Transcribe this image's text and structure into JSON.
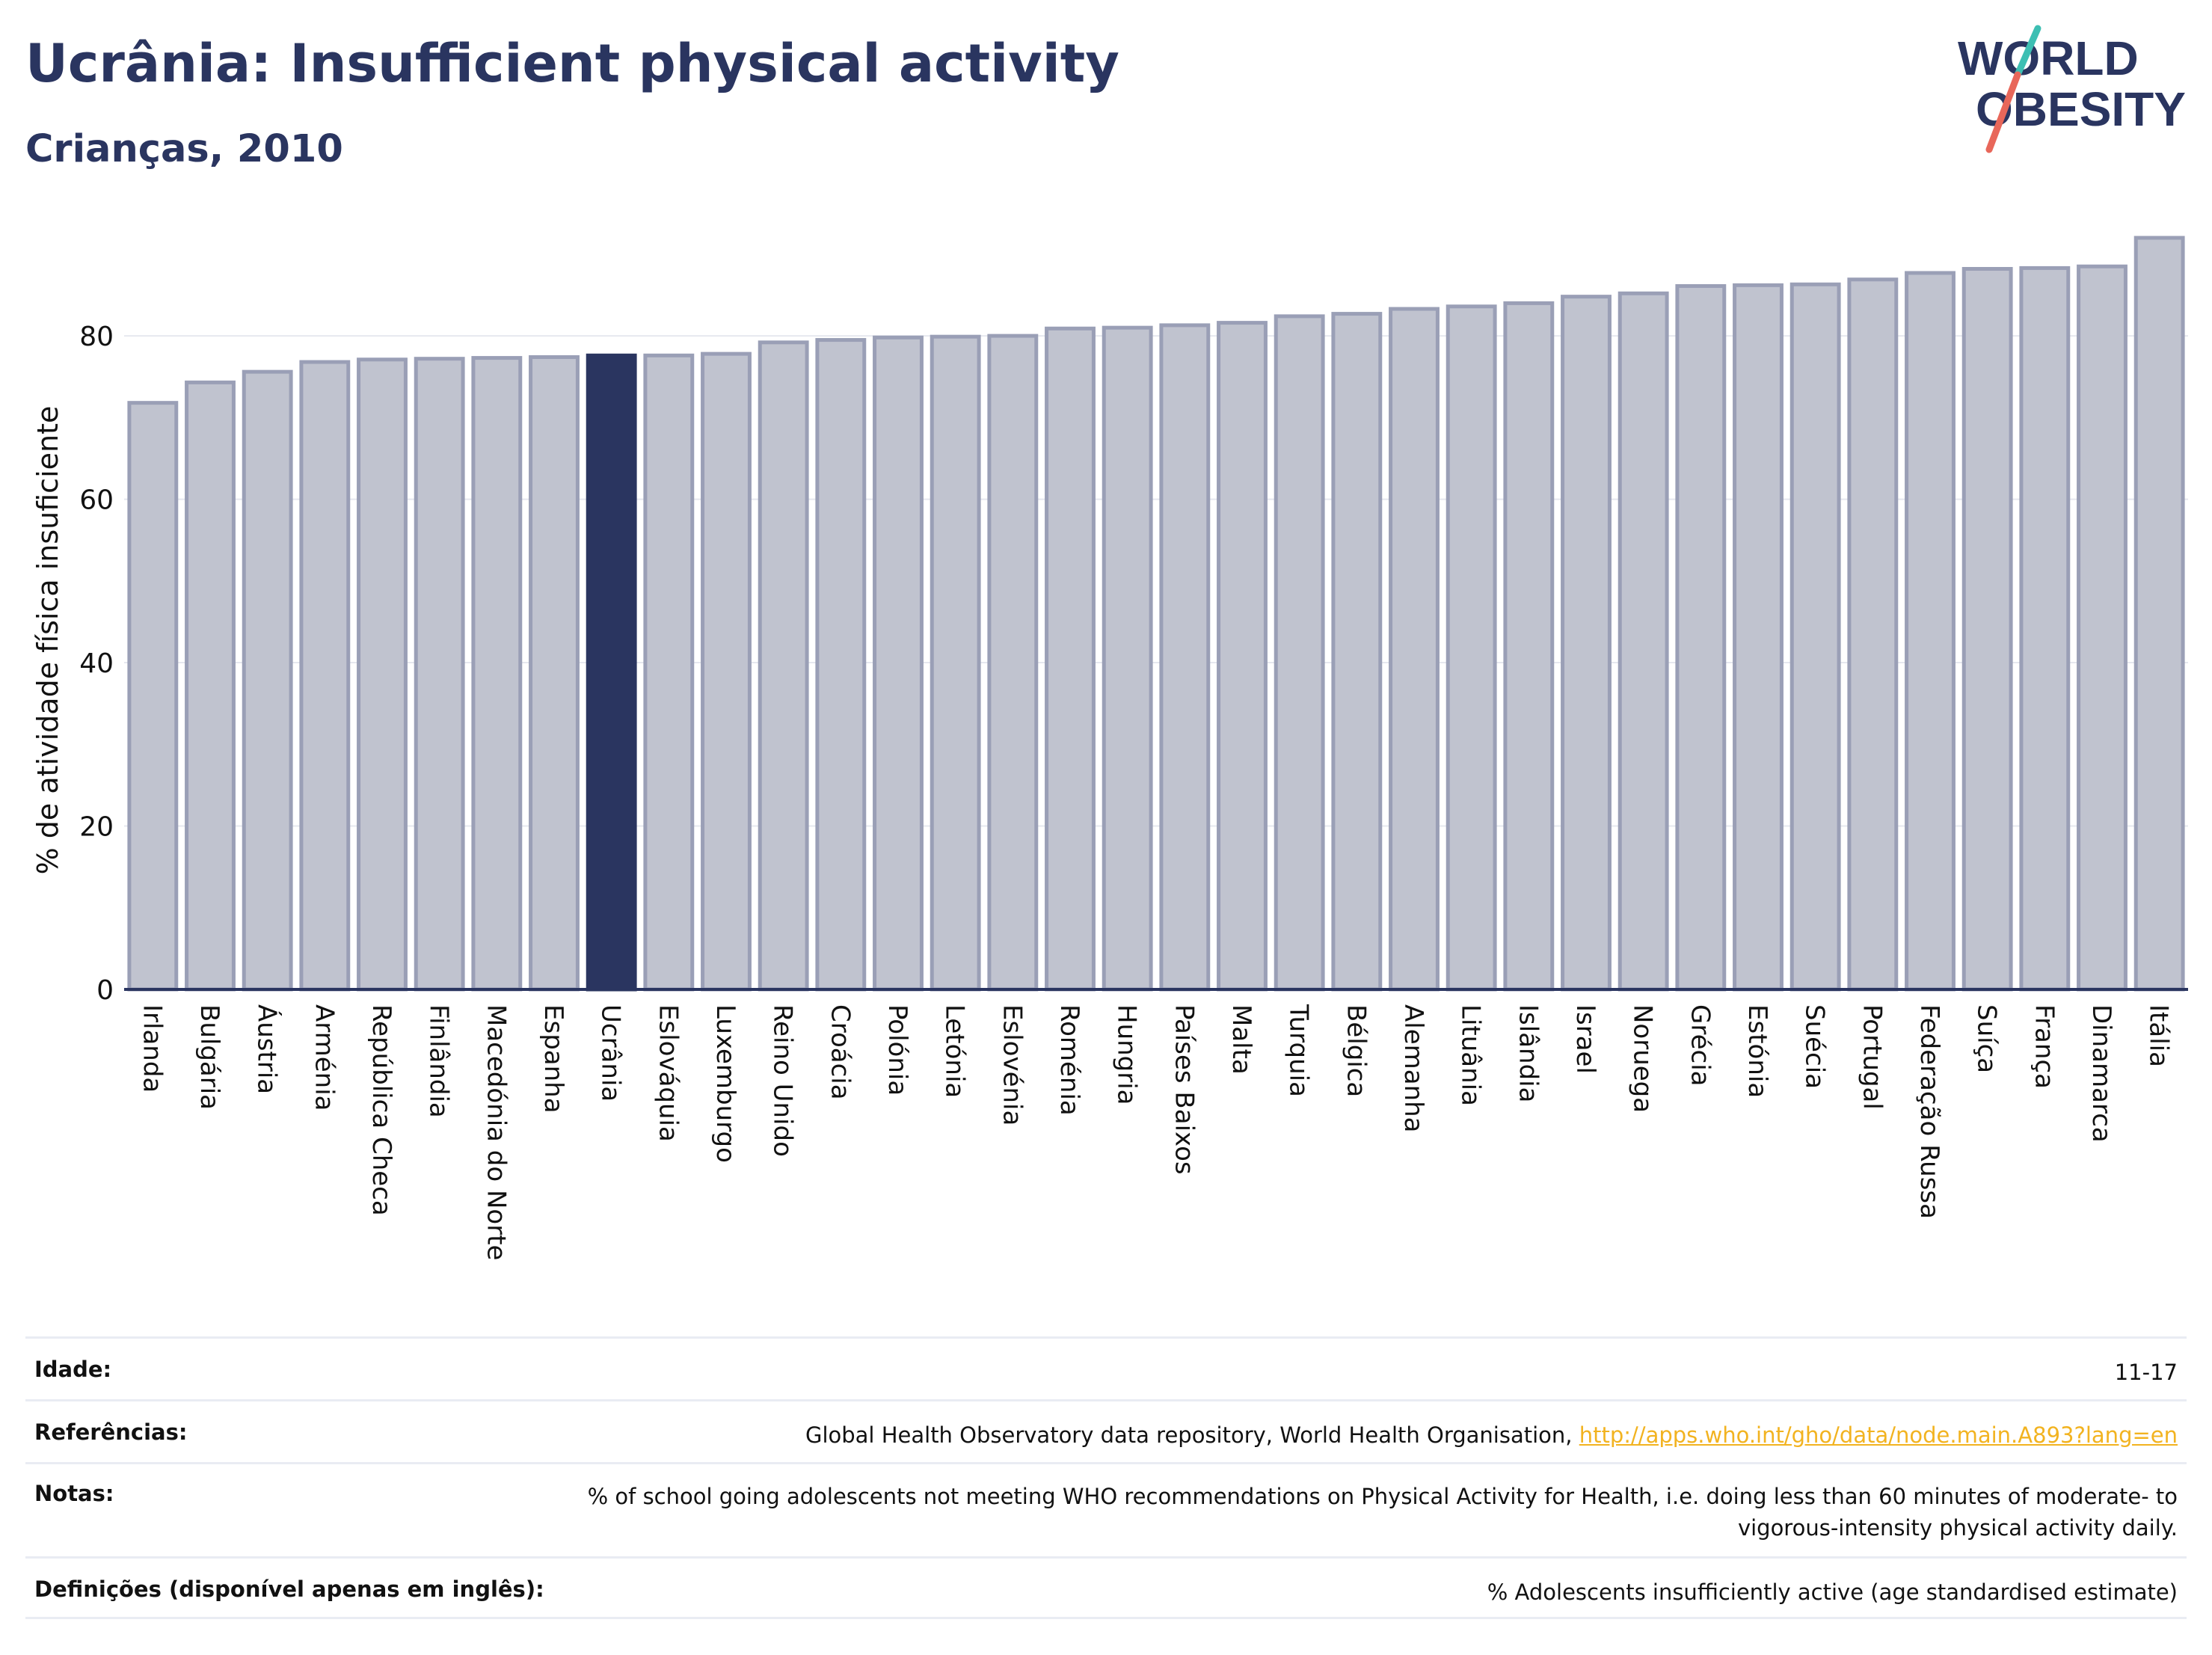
{
  "header": {
    "title": "Ucrânia: Insufficient physical activity",
    "subtitle": "Crianças, 2010"
  },
  "logo": {
    "line1": "WORLD",
    "line2": "OBESITY",
    "colors": {
      "text": "#2a3560",
      "slash_teal": "#3dbfb3",
      "slash_red": "#e8675a"
    }
  },
  "chart_data": {
    "type": "bar",
    "title": "Ucrânia: Insufficient physical activity",
    "subtitle": "Crianças, 2010",
    "xlabel": "",
    "ylabel": "% de atividade física insuficiente",
    "ylim": [
      0,
      92
    ],
    "yticks": [
      0,
      20,
      40,
      60,
      80
    ],
    "grid": true,
    "highlight": "Ucrânia",
    "colors": {
      "bar": "#c0c3cf",
      "bar_edge": "#9a9fb6",
      "highlight": "#2a3560",
      "grid": "#e6e8ef",
      "axis": "#2a3560"
    },
    "categories": [
      "Irlanda",
      "Bulgária",
      "Áustria",
      "Arménia",
      "República Checa",
      "Finlândia",
      "Macedónia do Norte",
      "Espanha",
      "Ucrânia",
      "Eslováquia",
      "Luxemburgo",
      "Reino Unido",
      "Croácia",
      "Polónia",
      "Letónia",
      "Eslovénia",
      "Roménia",
      "Hungria",
      "Países Baixos",
      "Malta",
      "Turquia",
      "Bélgica",
      "Alemanha",
      "Lituânia",
      "Islândia",
      "Israel",
      "Noruega",
      "Grécia",
      "Estónia",
      "Suécia",
      "Portugal",
      "Federação Russa",
      "Suíça",
      "França",
      "Dinamarca",
      "Itália"
    ],
    "values": [
      71.8,
      74.3,
      75.6,
      76.8,
      77.1,
      77.2,
      77.3,
      77.4,
      77.6,
      77.6,
      77.8,
      79.2,
      79.5,
      79.8,
      79.9,
      80.0,
      80.9,
      81.0,
      81.3,
      81.6,
      82.4,
      82.7,
      83.3,
      83.6,
      84.0,
      84.8,
      85.2,
      86.1,
      86.2,
      86.3,
      86.9,
      87.7,
      88.2,
      88.3,
      88.5,
      92.0
    ]
  },
  "meta": [
    {
      "label": "Idade:",
      "value": "11-17"
    },
    {
      "label": "Referências:",
      "value": "Global Health Observatory data repository, World Health Organisation, ",
      "link": "http://apps.who.int/gho/data/node.main.A893?lang=en"
    },
    {
      "label": "Notas:",
      "value": "% of school going adolescents not meeting WHO recommendations on Physical Activity for Health, i.e. doing less than 60 minutes of moderate- to vigorous-intensity physical activity daily."
    },
    {
      "label": "Definições (disponível apenas em inglês):",
      "value": "% Adolescents insufficiently active (age standardised estimate)"
    }
  ]
}
